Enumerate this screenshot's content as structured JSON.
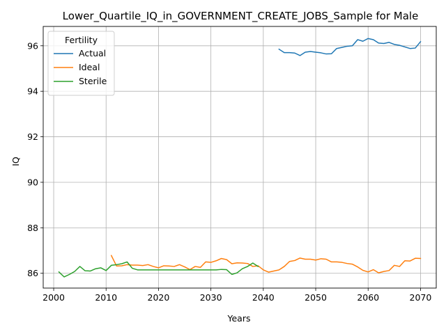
{
  "chart_data": {
    "type": "line",
    "title": "Lower_Quartile_IQ_in_GOVERNMENT_CREATE_JOBS_Sample for Male",
    "xlabel": "Years",
    "ylabel": "IQ",
    "xlim": [
      1998,
      2073
    ],
    "ylim": [
      85.35,
      96.85
    ],
    "xticks": [
      2000,
      2010,
      2020,
      2030,
      2040,
      2050,
      2060,
      2070
    ],
    "yticks": [
      86,
      88,
      90,
      92,
      94,
      96
    ],
    "grid": true,
    "legend": {
      "title": "Fertility",
      "position": "top-left"
    },
    "series": [
      {
        "name": "Actual",
        "color": "#1f77b4",
        "x": [
          2043,
          2044,
          2045,
          2046,
          2047,
          2048,
          2049,
          2050,
          2051,
          2052,
          2053,
          2054,
          2055,
          2056,
          2057,
          2058,
          2059,
          2060,
          2061,
          2062,
          2063,
          2064,
          2065,
          2066,
          2067,
          2068,
          2069,
          2070
        ],
        "y": [
          95.85,
          95.7,
          95.7,
          95.68,
          95.57,
          95.72,
          95.75,
          95.72,
          95.69,
          95.64,
          95.65,
          95.88,
          95.93,
          95.98,
          96.0,
          96.27,
          96.2,
          96.32,
          96.27,
          96.12,
          96.1,
          96.15,
          96.06,
          96.02,
          95.95,
          95.88,
          95.9,
          96.18
        ]
      },
      {
        "name": "Ideal",
        "color": "#ff7f0e",
        "x": [
          2011,
          2012,
          2013,
          2014,
          2015,
          2016,
          2017,
          2018,
          2019,
          2020,
          2021,
          2022,
          2023,
          2024,
          2025,
          2026,
          2027,
          2028,
          2029,
          2030,
          2031,
          2032,
          2033,
          2034,
          2035,
          2036,
          2037,
          2038,
          2039,
          2040,
          2041,
          2042,
          2043,
          2044,
          2045,
          2046,
          2047,
          2048,
          2049,
          2050,
          2051,
          2052,
          2053,
          2054,
          2055,
          2056,
          2057,
          2058,
          2059,
          2060,
          2061,
          2062,
          2063,
          2064,
          2065,
          2066,
          2067,
          2068,
          2069,
          2070
        ],
        "y": [
          86.78,
          86.32,
          86.33,
          86.38,
          86.36,
          86.36,
          86.34,
          86.38,
          86.3,
          86.24,
          86.33,
          86.32,
          86.3,
          86.38,
          86.28,
          86.16,
          86.3,
          86.26,
          86.5,
          86.48,
          86.55,
          86.65,
          86.6,
          86.42,
          86.46,
          86.45,
          86.43,
          86.3,
          86.33,
          86.15,
          86.05,
          86.1,
          86.15,
          86.3,
          86.52,
          86.56,
          86.67,
          86.62,
          86.62,
          86.58,
          86.64,
          86.62,
          86.5,
          86.5,
          86.48,
          86.43,
          86.4,
          86.28,
          86.13,
          86.06,
          86.16,
          86.02,
          86.08,
          86.12,
          86.35,
          86.3,
          86.55,
          86.54,
          86.66,
          86.65
        ]
      },
      {
        "name": "Sterile",
        "color": "#2ca02c",
        "x": [
          2001,
          2002,
          2003,
          2004,
          2005,
          2006,
          2007,
          2008,
          2009,
          2010,
          2011,
          2012,
          2013,
          2014,
          2015,
          2016,
          2017,
          2018,
          2019,
          2020,
          2021,
          2022,
          2023,
          2024,
          2025,
          2026,
          2027,
          2028,
          2029,
          2030,
          2031,
          2032,
          2033,
          2034,
          2035,
          2036,
          2037,
          2038,
          2039
        ],
        "y": [
          86.06,
          85.84,
          85.95,
          86.08,
          86.3,
          86.11,
          86.1,
          86.2,
          86.24,
          86.12,
          86.35,
          86.38,
          86.42,
          86.5,
          86.22,
          86.15,
          86.15,
          86.15,
          86.15,
          86.15,
          86.15,
          86.15,
          86.15,
          86.15,
          86.15,
          86.15,
          86.15,
          86.15,
          86.15,
          86.15,
          86.15,
          86.17,
          86.16,
          85.95,
          86.02,
          86.2,
          86.3,
          86.45,
          86.3
        ]
      }
    ]
  }
}
